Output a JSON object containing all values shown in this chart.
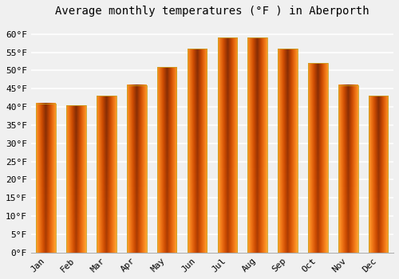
{
  "title": "Average monthly temperatures (°F ) in Aberporth",
  "months": [
    "Jan",
    "Feb",
    "Mar",
    "Apr",
    "May",
    "Jun",
    "Jul",
    "Aug",
    "Sep",
    "Oct",
    "Nov",
    "Dec"
  ],
  "values": [
    41,
    40.5,
    43,
    46,
    51,
    56,
    59,
    59,
    56,
    52,
    46,
    43
  ],
  "bar_color": "#FFC125",
  "bar_gradient_light": "#FFD966",
  "bar_gradient_dark": "#F5A623",
  "bar_edge_color": "#C8A020",
  "ylim": [
    0,
    63
  ],
  "yticks": [
    0,
    5,
    10,
    15,
    20,
    25,
    30,
    35,
    40,
    45,
    50,
    55,
    60
  ],
  "ytick_labels": [
    "0°F",
    "5°F",
    "10°F",
    "15°F",
    "20°F",
    "25°F",
    "30°F",
    "35°F",
    "40°F",
    "45°F",
    "50°F",
    "55°F",
    "60°F"
  ],
  "background_color": "#f0f0f0",
  "grid_color": "#ffffff",
  "title_fontsize": 10,
  "tick_fontsize": 8,
  "font_family": "monospace",
  "bar_width": 0.65
}
